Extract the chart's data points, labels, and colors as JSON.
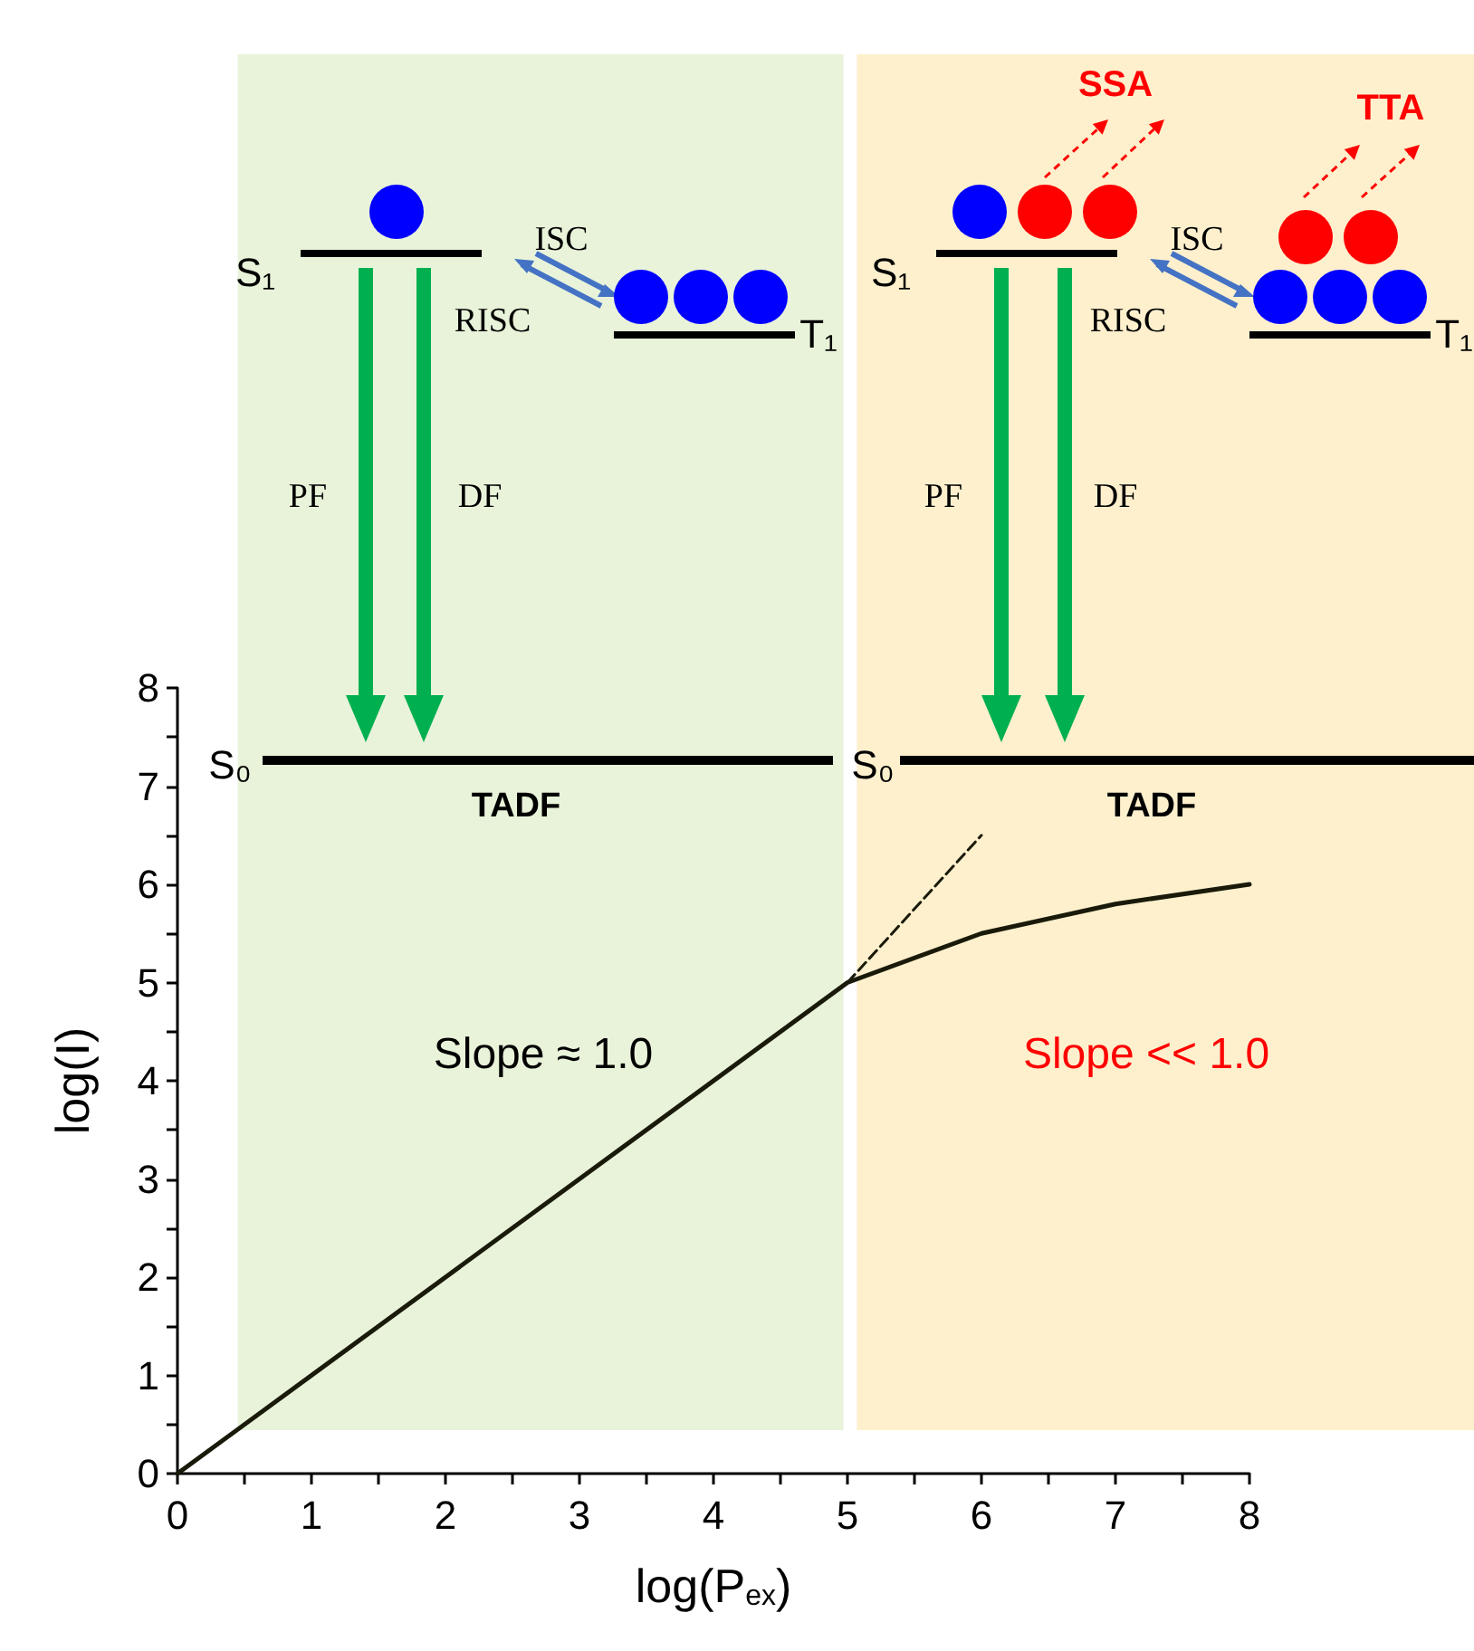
{
  "chart_data": {
    "type": "line",
    "xlabel": "log(P$_{ex}$)",
    "ylabel": "log(I)",
    "xlim": [
      0,
      8
    ],
    "ylim": [
      0,
      8
    ],
    "xticks": [
      0,
      {
        "value": 0.5,
        "label": null
      },
      1,
      {
        "value": 1.5,
        "label": null
      },
      2,
      {
        "value": 2.5,
        "label": null
      },
      3,
      {
        "value": 3.5,
        "label": null
      },
      4,
      {
        "value": 4.5,
        "label": null
      },
      5,
      {
        "value": 5.5,
        "label": null
      },
      6,
      {
        "value": 6.5,
        "label": null
      },
      7,
      {
        "value": 7.5,
        "label": null
      },
      8
    ],
    "yticks": [
      0,
      {
        "value": 0.5,
        "label": null
      },
      1,
      {
        "value": 1.5,
        "label": null
      },
      2,
      {
        "value": 2.5,
        "label": null
      },
      3,
      {
        "value": 3.5,
        "label": null
      },
      4,
      {
        "value": 4.5,
        "label": null
      },
      5,
      {
        "value": 5.5,
        "label": null
      },
      6,
      {
        "value": 6.5,
        "label": null
      },
      7,
      {
        "value": 7.5,
        "label": null
      },
      8
    ],
    "series": [
      {
        "x": [
          0,
          5,
          6,
          7,
          8
        ],
        "values": [
          0,
          5,
          5.5,
          5.8,
          6
        ],
        "color": "#1a1a0a",
        "line_style": "solid"
      },
      {
        "x": [
          5,
          6
        ],
        "values": [
          5,
          6.5
        ],
        "color": "#1a1a0a",
        "line_style": "dashed"
      }
    ],
    "bands": [
      {
        "axis": "x",
        "from": 0.45,
        "to": 4.97,
        "color": "#e8f3da"
      },
      {
        "axis": "x",
        "from": 5.07,
        "to": 9.68,
        "color": "#fef0cd"
      }
    ],
    "marker": "none",
    "grid": false,
    "annotations": [
      "S₁",
      "ISC",
      "RISC",
      "T₁",
      "PF",
      "DF",
      "S₀",
      "TADF",
      "Slope ≈ 1.0",
      "S₁",
      "SSA",
      "TTA",
      "ISC",
      "RISC",
      "T₁",
      "PF",
      "DF",
      "S₀",
      "TADF",
      "Slope << 1.0"
    ]
  }
}
